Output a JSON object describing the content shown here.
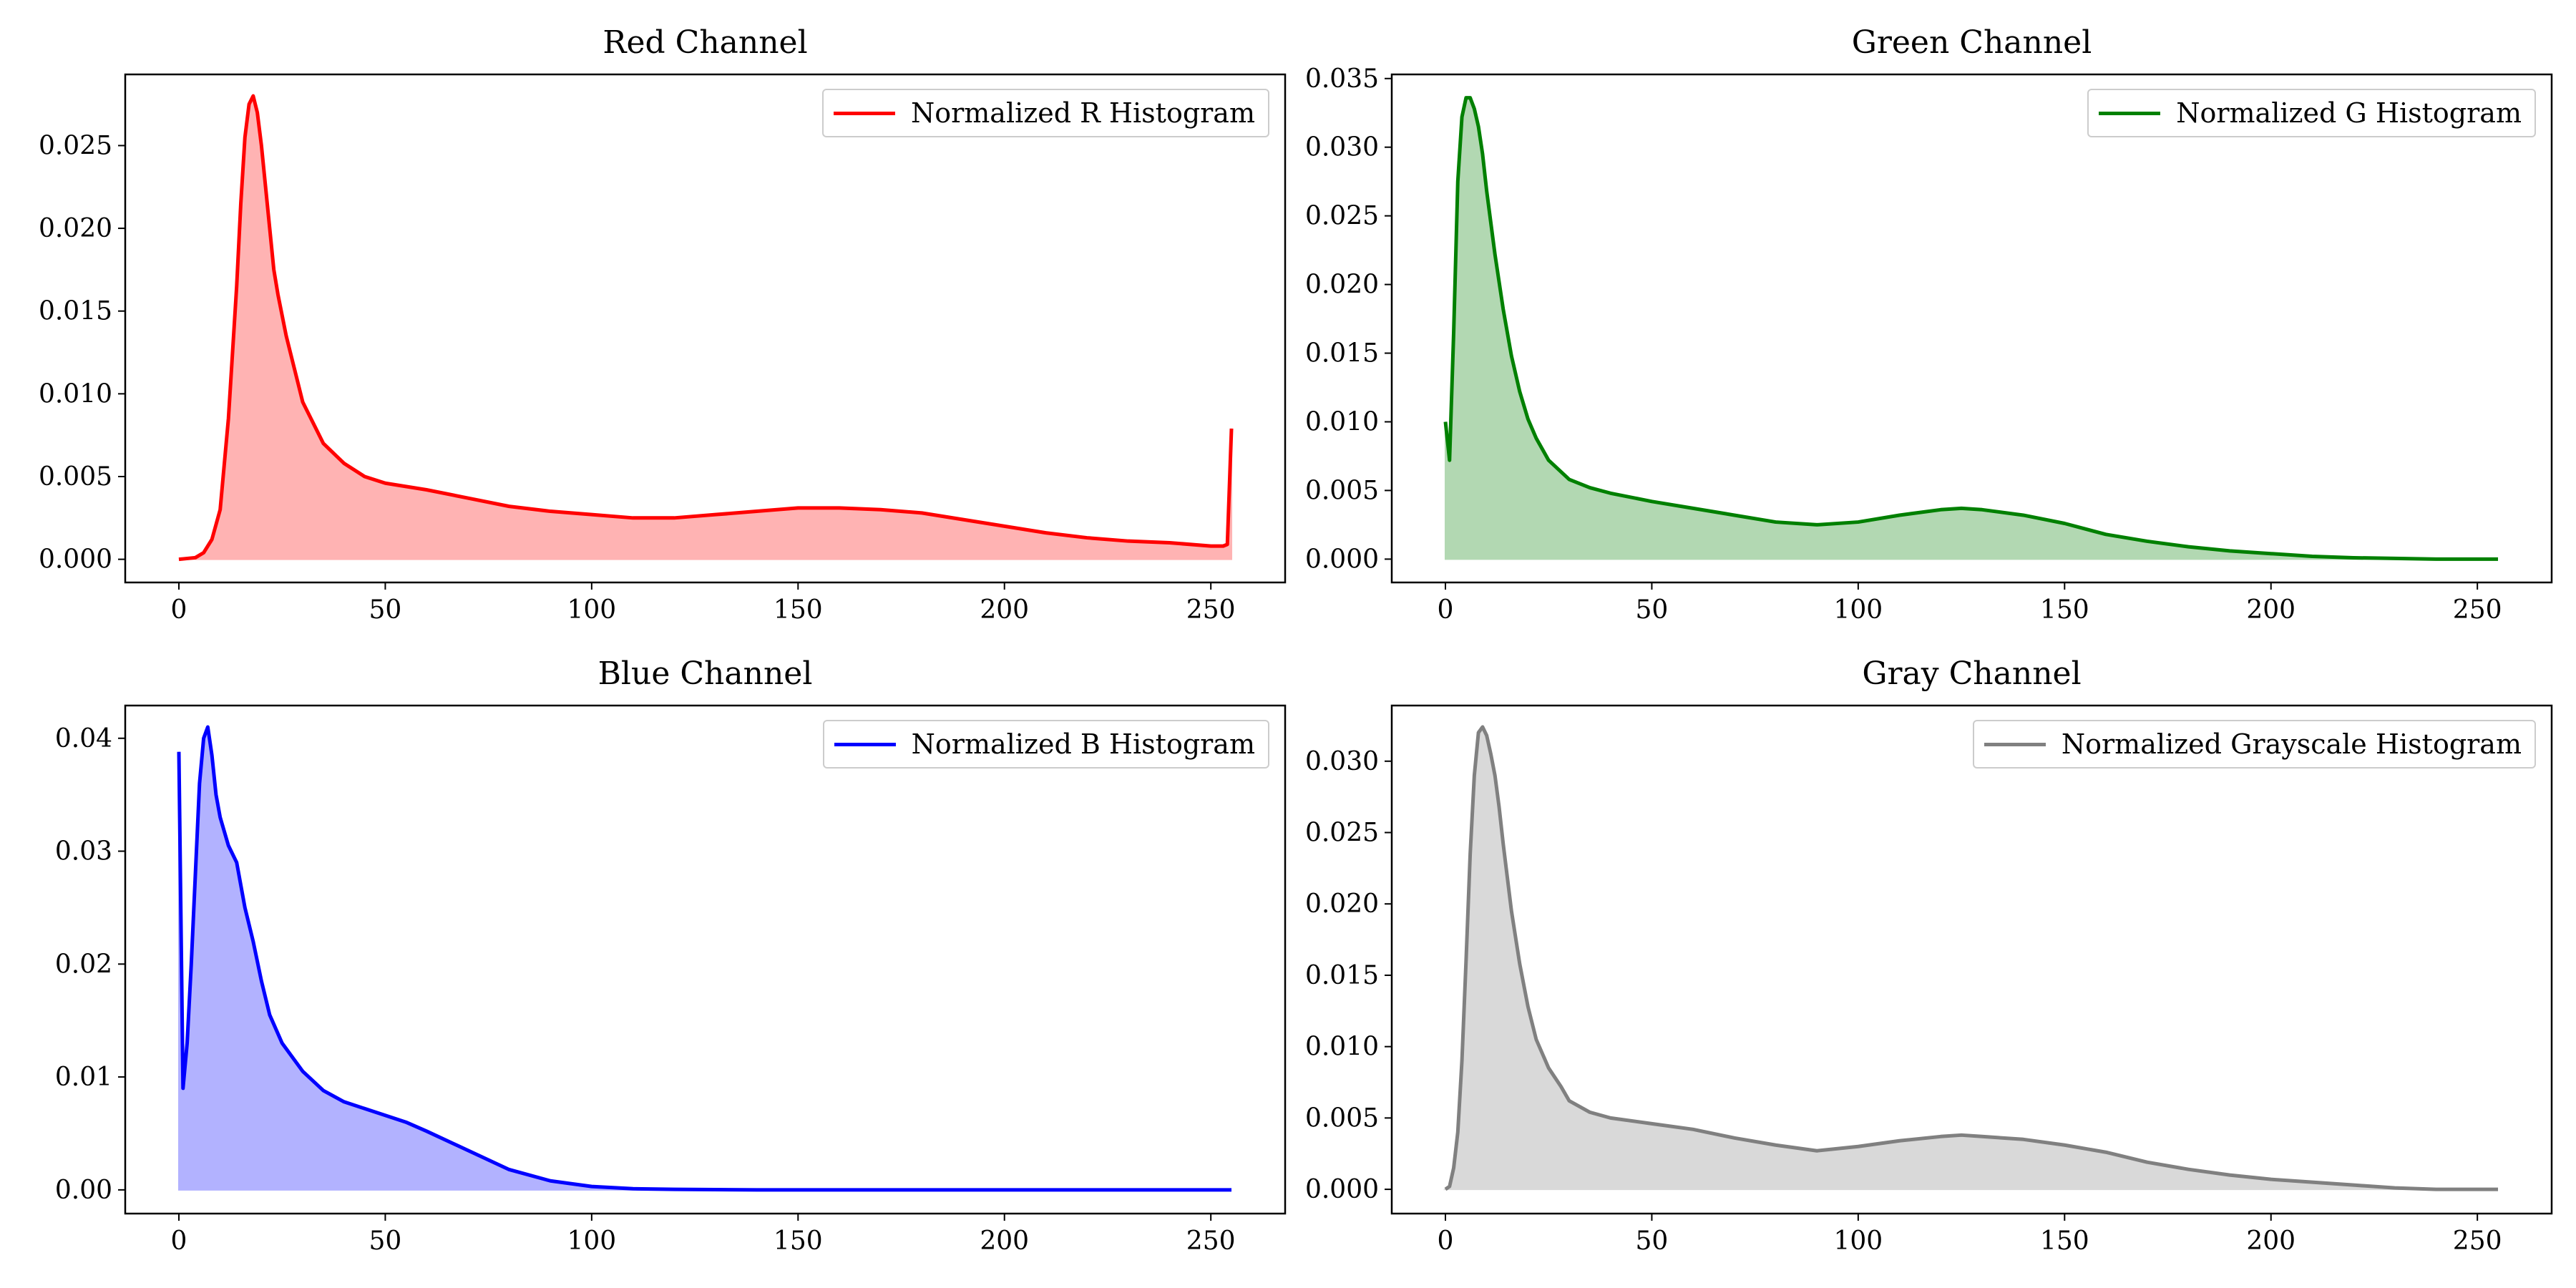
{
  "chart_data": [
    {
      "type": "area",
      "title": "Red Channel",
      "legend": "Normalized R Histogram",
      "legend_position": "top-right",
      "color": "#ff0000",
      "fill": "#ffb3b3",
      "xlim": [
        -13,
        268
      ],
      "ylim": [
        -0.0014,
        0.0293
      ],
      "xticks": [
        0,
        50,
        100,
        150,
        200,
        250
      ],
      "xtick_labels": [
        "0",
        "50",
        "100",
        "150",
        "200",
        "250"
      ],
      "yticks": [
        0,
        0.005,
        0.01,
        0.015,
        0.02,
        0.025
      ],
      "ytick_labels": [
        "0.000",
        "0.005",
        "0.010",
        "0.015",
        "0.020",
        "0.025"
      ],
      "x": [
        0,
        4,
        6,
        8,
        10,
        12,
        14,
        15,
        16,
        17,
        18,
        19,
        20,
        21,
        22,
        23,
        24,
        26,
        28,
        30,
        32,
        35,
        40,
        45,
        50,
        55,
        60,
        70,
        80,
        90,
        100,
        110,
        120,
        130,
        140,
        150,
        160,
        170,
        180,
        190,
        200,
        210,
        220,
        230,
        240,
        250,
        253,
        254,
        255
      ],
      "y": [
        0.0,
        0.0001,
        0.0004,
        0.0012,
        0.003,
        0.0085,
        0.0165,
        0.0215,
        0.0255,
        0.0275,
        0.028,
        0.027,
        0.025,
        0.0225,
        0.02,
        0.0175,
        0.016,
        0.0135,
        0.0115,
        0.0095,
        0.0085,
        0.007,
        0.0058,
        0.005,
        0.0046,
        0.0044,
        0.0042,
        0.0037,
        0.0032,
        0.0029,
        0.0027,
        0.0025,
        0.0025,
        0.0027,
        0.0029,
        0.0031,
        0.0031,
        0.003,
        0.0028,
        0.0024,
        0.002,
        0.0016,
        0.0013,
        0.0011,
        0.001,
        0.0008,
        0.0008,
        0.0009,
        0.0079
      ]
    },
    {
      "type": "area",
      "title": "Green Channel",
      "legend": "Normalized G Histogram",
      "legend_position": "top-right",
      "color": "#008000",
      "fill": "#b2d8b2",
      "xlim": [
        -13,
        268
      ],
      "ylim": [
        -0.0017,
        0.0353
      ],
      "xticks": [
        0,
        50,
        100,
        150,
        200,
        250
      ],
      "xtick_labels": [
        "0",
        "50",
        "100",
        "150",
        "200",
        "250"
      ],
      "yticks": [
        0,
        0.005,
        0.01,
        0.015,
        0.02,
        0.025,
        0.03,
        0.035
      ],
      "ytick_labels": [
        "0.000",
        "0.005",
        "0.010",
        "0.015",
        "0.020",
        "0.025",
        "0.030",
        "0.035"
      ],
      "x": [
        0,
        1,
        2,
        3,
        4,
        5,
        6,
        7,
        8,
        9,
        10,
        12,
        14,
        16,
        18,
        20,
        22,
        25,
        30,
        35,
        40,
        50,
        60,
        70,
        80,
        90,
        100,
        110,
        120,
        125,
        130,
        140,
        150,
        160,
        170,
        180,
        190,
        200,
        210,
        220,
        230,
        240,
        250,
        255
      ],
      "y": [
        0.01,
        0.0072,
        0.0165,
        0.0275,
        0.0322,
        0.0336,
        0.0336,
        0.0328,
        0.0315,
        0.0295,
        0.0268,
        0.0222,
        0.0182,
        0.0148,
        0.0122,
        0.0102,
        0.0088,
        0.0072,
        0.0058,
        0.0052,
        0.0048,
        0.0042,
        0.0037,
        0.0032,
        0.0027,
        0.0025,
        0.0027,
        0.0032,
        0.0036,
        0.0037,
        0.0036,
        0.0032,
        0.0026,
        0.0018,
        0.0013,
        0.0009,
        0.0006,
        0.0004,
        0.0002,
        0.0001,
        5e-05,
        0.0,
        0.0,
        0.0
      ]
    },
    {
      "type": "area",
      "title": "Blue Channel",
      "legend": "Normalized B Histogram",
      "legend_position": "top-right",
      "color": "#0000ff",
      "fill": "#b2b2ff",
      "xlim": [
        -13,
        268
      ],
      "ylim": [
        -0.0021,
        0.0429
      ],
      "xticks": [
        0,
        50,
        100,
        150,
        200,
        250
      ],
      "xtick_labels": [
        "0",
        "50",
        "100",
        "150",
        "200",
        "250"
      ],
      "yticks": [
        0,
        0.01,
        0.02,
        0.03,
        0.04
      ],
      "ytick_labels": [
        "0.00",
        "0.01",
        "0.02",
        "0.03",
        "0.04"
      ],
      "x": [
        0,
        1,
        2,
        3,
        4,
        5,
        6,
        7,
        8,
        9,
        10,
        12,
        14,
        16,
        18,
        20,
        22,
        25,
        30,
        35,
        40,
        45,
        50,
        55,
        60,
        70,
        80,
        90,
        100,
        110,
        120,
        140,
        160,
        200,
        255
      ],
      "y": [
        0.0388,
        0.009,
        0.013,
        0.02,
        0.028,
        0.036,
        0.04,
        0.041,
        0.0385,
        0.035,
        0.033,
        0.0305,
        0.029,
        0.025,
        0.022,
        0.0185,
        0.0155,
        0.013,
        0.0105,
        0.0088,
        0.0078,
        0.0072,
        0.0066,
        0.006,
        0.0052,
        0.0035,
        0.0018,
        0.0008,
        0.0003,
        0.0001,
        5e-05,
        0.0,
        0.0,
        0.0,
        0.0
      ]
    },
    {
      "type": "area",
      "title": "Gray Channel",
      "legend": "Normalized Grayscale Histogram",
      "legend_position": "top-right",
      "color": "#808080",
      "fill": "#d9d9d9",
      "xlim": [
        -13,
        268
      ],
      "ylim": [
        -0.0017,
        0.0339
      ],
      "xticks": [
        0,
        50,
        100,
        150,
        200,
        250
      ],
      "xtick_labels": [
        "0",
        "50",
        "100",
        "150",
        "200",
        "250"
      ],
      "yticks": [
        0,
        0.005,
        0.01,
        0.015,
        0.02,
        0.025,
        0.03
      ],
      "ytick_labels": [
        "0.000",
        "0.005",
        "0.010",
        "0.015",
        "0.020",
        "0.025",
        "0.030"
      ],
      "x": [
        0,
        1,
        2,
        3,
        4,
        5,
        6,
        7,
        8,
        9,
        10,
        11,
        12,
        13,
        14,
        16,
        18,
        20,
        22,
        25,
        28,
        30,
        35,
        40,
        50,
        60,
        70,
        80,
        90,
        100,
        110,
        120,
        125,
        130,
        140,
        150,
        160,
        170,
        180,
        190,
        200,
        210,
        220,
        230,
        240,
        255
      ],
      "y": [
        0.0,
        0.0002,
        0.0015,
        0.004,
        0.009,
        0.016,
        0.0235,
        0.029,
        0.032,
        0.0324,
        0.0318,
        0.0305,
        0.029,
        0.0268,
        0.0242,
        0.0195,
        0.0158,
        0.0128,
        0.0105,
        0.0085,
        0.0072,
        0.0062,
        0.0054,
        0.005,
        0.0046,
        0.0042,
        0.0036,
        0.0031,
        0.0027,
        0.003,
        0.0034,
        0.0037,
        0.0038,
        0.0037,
        0.0035,
        0.0031,
        0.0026,
        0.0019,
        0.0014,
        0.001,
        0.0007,
        0.0005,
        0.0003,
        0.0001,
        0.0,
        0.0
      ]
    }
  ]
}
